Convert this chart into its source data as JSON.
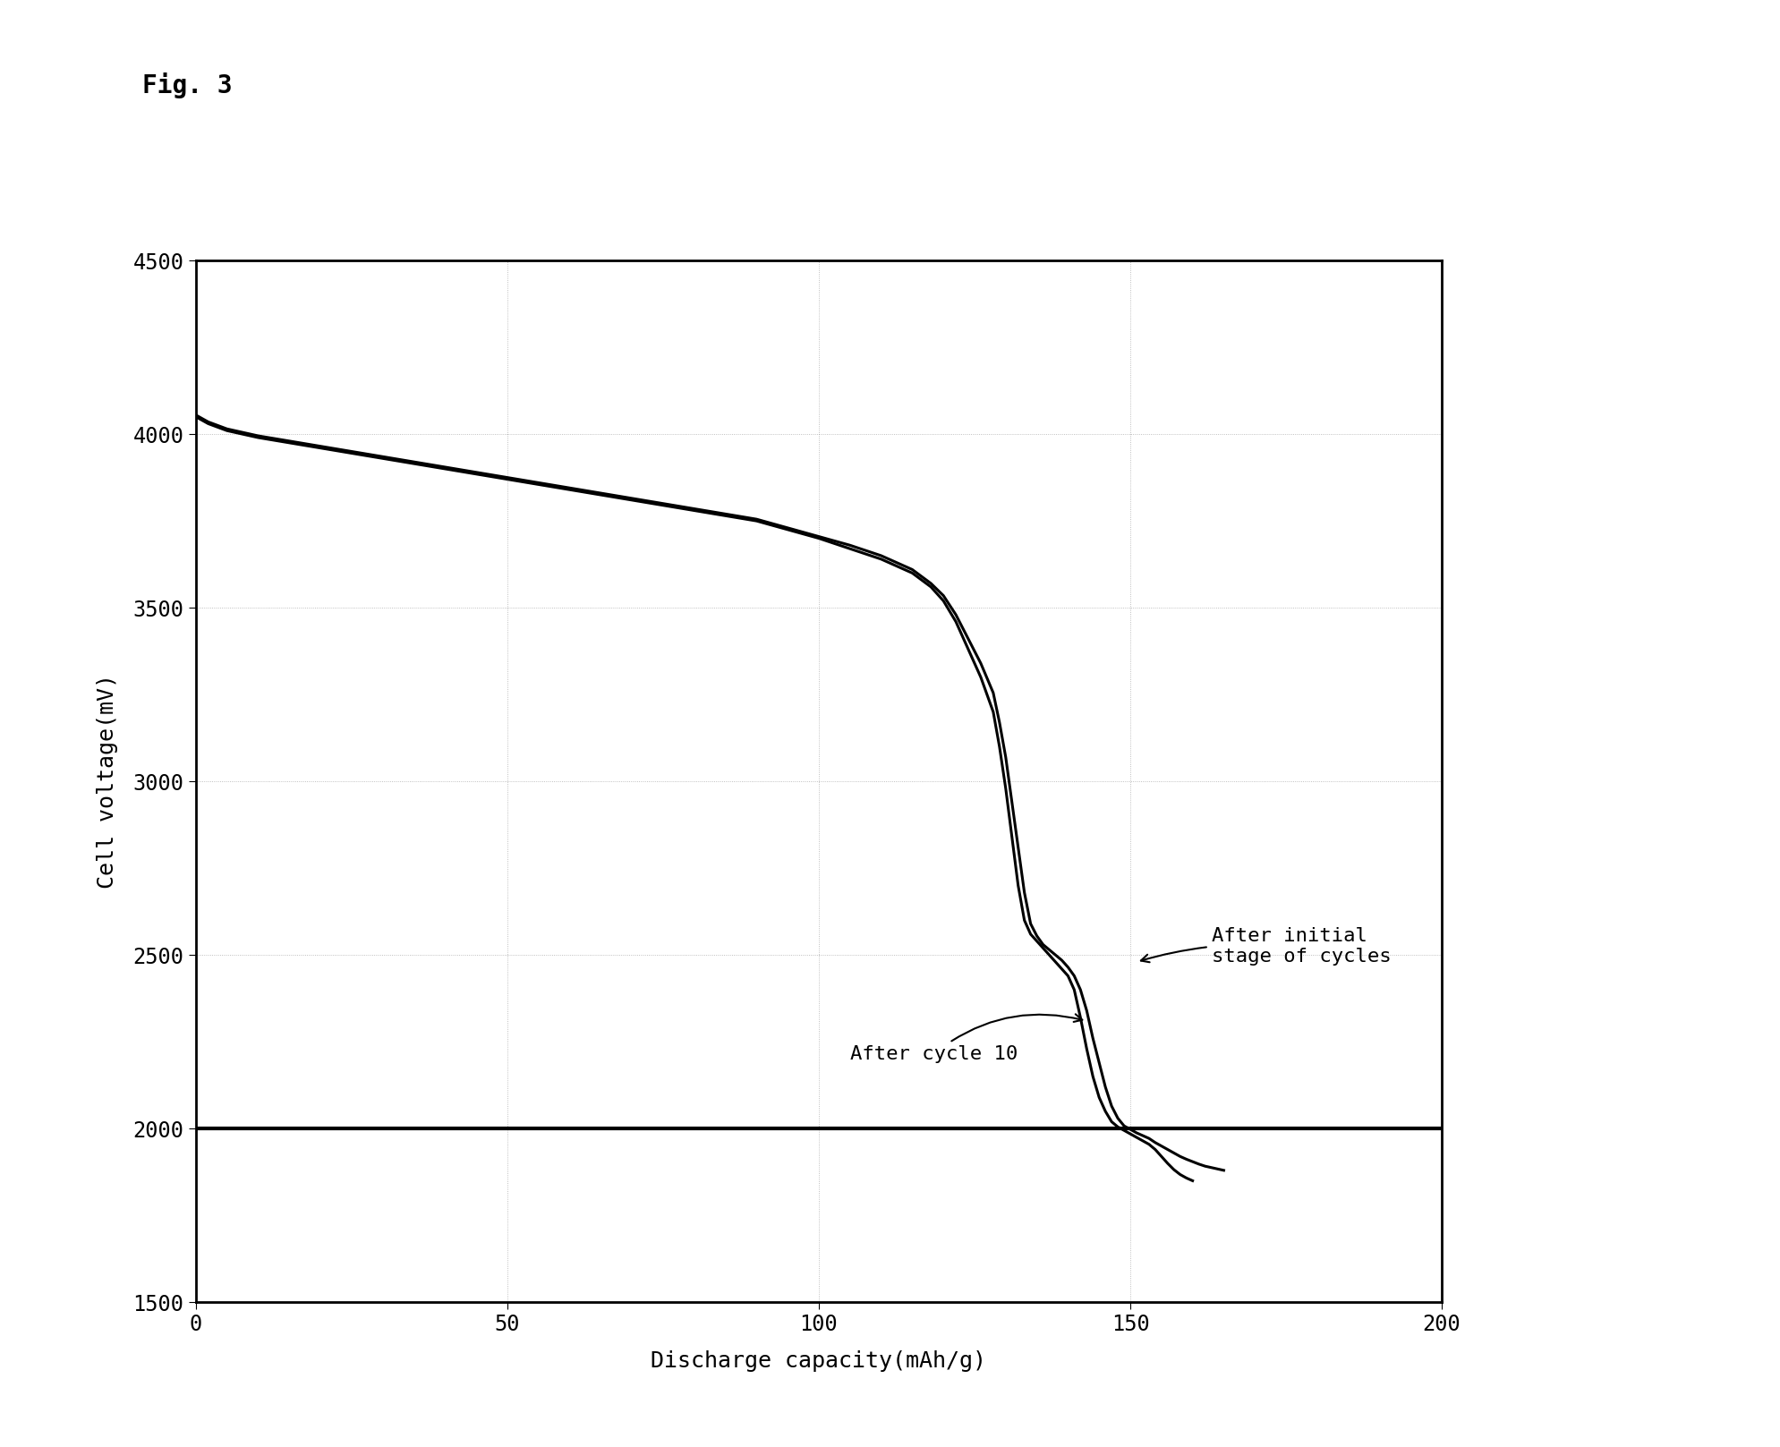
{
  "title": "Fig. 3",
  "xlabel": "Discharge capacity(mAh/g)",
  "ylabel": "Cell voltage(mV)",
  "xlim": [
    0,
    200
  ],
  "ylim": [
    1500,
    4500
  ],
  "xticks": [
    0,
    50,
    100,
    150,
    200
  ],
  "yticks": [
    1500,
    2000,
    2500,
    3000,
    3500,
    4000,
    4500
  ],
  "grid_color": "#777777",
  "line_color": "#000000",
  "cutoff_line_y": 2000,
  "background_color": "#ffffff",
  "annotation_cycle10": "After cycle 10",
  "annotation_initial": "After initial\nstage of cycles",
  "curve1_x": [
    0,
    2,
    5,
    10,
    15,
    20,
    25,
    30,
    35,
    40,
    50,
    60,
    70,
    80,
    90,
    100,
    105,
    110,
    115,
    118,
    120,
    122,
    124,
    126,
    128,
    129,
    130,
    131,
    132,
    133,
    134,
    135,
    136,
    137,
    138,
    139,
    140,
    141,
    142,
    143,
    144,
    145,
    146,
    147,
    148,
    149,
    150,
    151,
    152,
    153,
    154,
    155,
    156,
    157,
    158,
    159,
    160
  ],
  "curve1_y": [
    4050,
    4030,
    4010,
    3990,
    3975,
    3960,
    3945,
    3930,
    3915,
    3900,
    3870,
    3840,
    3810,
    3780,
    3750,
    3700,
    3670,
    3640,
    3600,
    3560,
    3520,
    3460,
    3380,
    3300,
    3200,
    3100,
    2980,
    2840,
    2700,
    2600,
    2560,
    2540,
    2520,
    2500,
    2480,
    2460,
    2440,
    2400,
    2320,
    2230,
    2150,
    2090,
    2050,
    2020,
    2005,
    1995,
    1985,
    1975,
    1965,
    1955,
    1940,
    1920,
    1900,
    1882,
    1868,
    1858,
    1850
  ],
  "curve2_x": [
    0,
    2,
    5,
    10,
    15,
    20,
    25,
    30,
    35,
    40,
    50,
    60,
    70,
    80,
    90,
    100,
    105,
    110,
    115,
    118,
    120,
    122,
    124,
    126,
    128,
    129,
    130,
    131,
    132,
    133,
    134,
    135,
    136,
    137,
    138,
    139,
    140,
    141,
    142,
    143,
    144,
    145,
    146,
    147,
    148,
    149,
    150,
    151,
    152,
    153,
    154,
    155,
    156,
    157,
    158,
    159,
    160,
    161,
    162,
    163,
    164,
    165
  ],
  "curve2_y": [
    4055,
    4035,
    4015,
    3995,
    3980,
    3965,
    3950,
    3935,
    3920,
    3905,
    3875,
    3845,
    3815,
    3785,
    3755,
    3705,
    3680,
    3650,
    3610,
    3570,
    3535,
    3480,
    3410,
    3340,
    3255,
    3170,
    3070,
    2940,
    2810,
    2680,
    2590,
    2555,
    2530,
    2515,
    2500,
    2485,
    2465,
    2440,
    2400,
    2340,
    2260,
    2190,
    2120,
    2065,
    2030,
    2008,
    1998,
    1988,
    1980,
    1972,
    1960,
    1950,
    1940,
    1930,
    1920,
    1912,
    1905,
    1898,
    1892,
    1888,
    1884,
    1880
  ]
}
